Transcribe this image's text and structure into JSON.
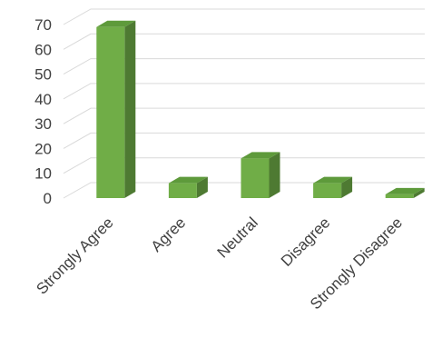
{
  "chart_data": {
    "type": "bar",
    "title": "",
    "xlabel": "",
    "ylabel": "",
    "categories": [
      "Strongly Agree",
      "Agree",
      "Neutral",
      "Disagree",
      "Strongly Disagree"
    ],
    "values": [
      69,
      6,
      16,
      6,
      1.5
    ],
    "ylim": [
      0,
      70
    ],
    "yticks": [
      0,
      10,
      20,
      30,
      40,
      50,
      60,
      70
    ],
    "grid": true,
    "legend": "none",
    "style": "3d-column",
    "colors": {
      "bar_front": "#70ad47",
      "bar_side": "#4e7a32",
      "bar_top": "#5e9a3b"
    }
  }
}
